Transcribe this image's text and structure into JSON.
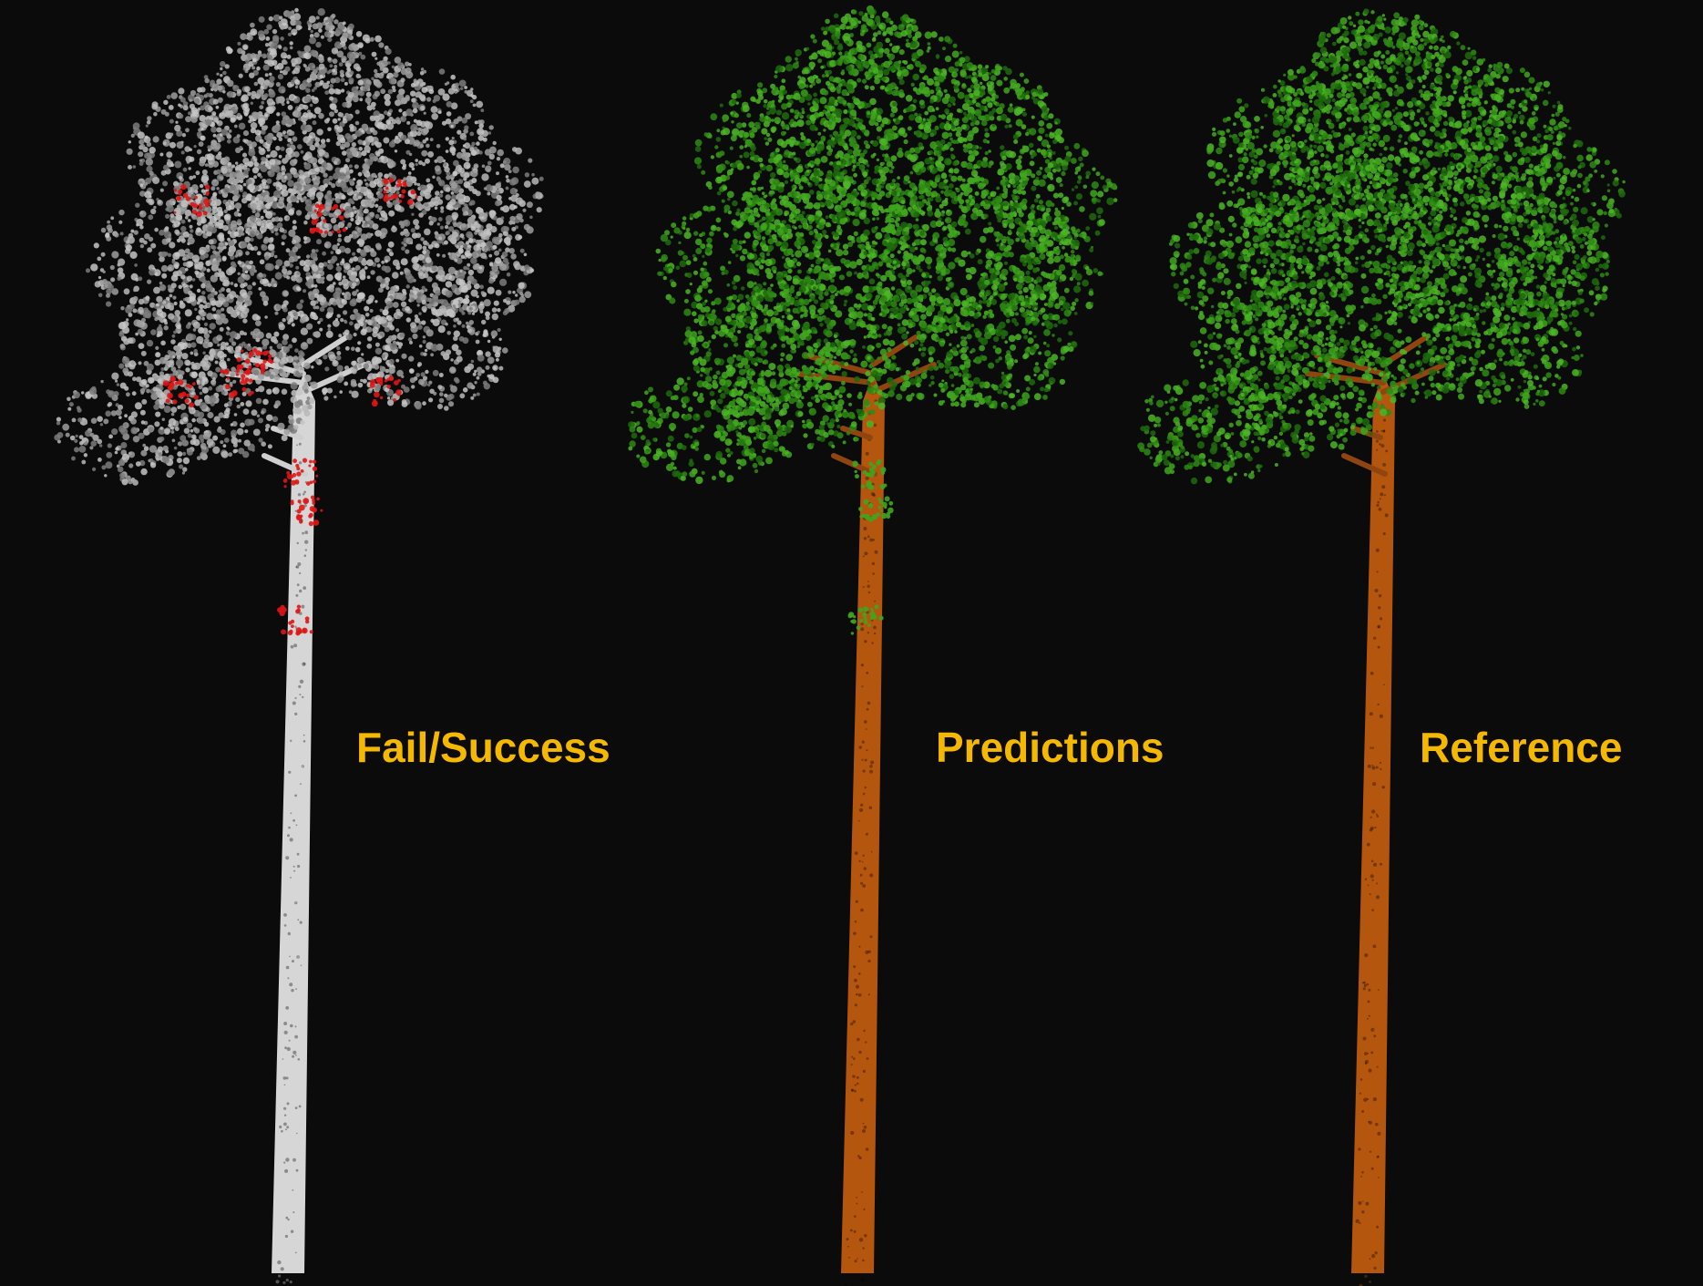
{
  "panels": [
    {
      "label": "Fail/Success",
      "trunk_color": "#d6d6d6",
      "branch_color": "#cfcfcf",
      "foliage_colors": [
        "#9e9e9e",
        "#b8b8b8",
        "#7c7c7c",
        "#c6c6c6"
      ],
      "error_color": "#e01616"
    },
    {
      "label": "Predictions",
      "trunk_color": "#b5560f",
      "branch_color": "#8f4510",
      "foliage_colors": [
        "#2e8a14",
        "#3fa61d",
        "#1f6a0d",
        "#4cb526"
      ],
      "error_color": "#3fa61d"
    },
    {
      "label": "Reference",
      "trunk_color": "#b5560f",
      "branch_color": "#8f4510",
      "foliage_colors": [
        "#2e8a14",
        "#3fa61d",
        "#1f6a0d",
        "#4cb526"
      ],
      "error_color": null
    }
  ],
  "background_color": "#0b0b0b",
  "label_color": "#f5b800"
}
